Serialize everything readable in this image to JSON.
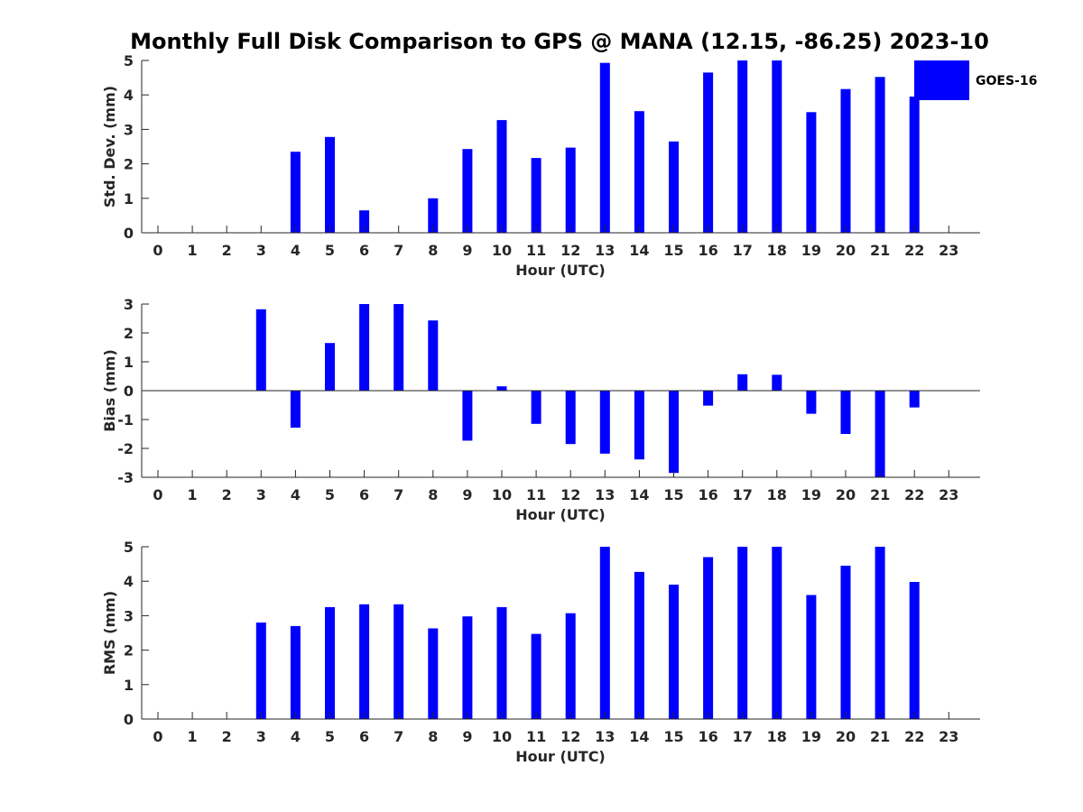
{
  "figure_title": "Monthly Full Disk Comparison to GPS @ MANA (12.15, -86.25) 2023-10",
  "legend": {
    "label": "GOES-16",
    "color": "#0000ff"
  },
  "chart_data": [
    {
      "type": "bar",
      "ylabel": "Std. Dev. (mm)",
      "xlabel": "Hour (UTC)",
      "ylim": [
        0,
        5
      ],
      "yticks": [
        0,
        1,
        2,
        3,
        4,
        5
      ],
      "x": [
        0,
        1,
        2,
        3,
        4,
        5,
        6,
        7,
        8,
        9,
        10,
        11,
        12,
        13,
        14,
        15,
        16,
        17,
        18,
        19,
        20,
        21,
        22,
        23
      ],
      "values": [
        null,
        null,
        null,
        null,
        2.35,
        2.78,
        0.65,
        null,
        1.0,
        2.43,
        3.27,
        2.17,
        2.47,
        4.93,
        3.53,
        2.65,
        4.65,
        5.0,
        5.0,
        3.5,
        4.17,
        4.52,
        3.95,
        null
      ],
      "color": "#0000ff",
      "baseline": false
    },
    {
      "type": "bar",
      "ylabel": "Bias (mm)",
      "xlabel": "Hour (UTC)",
      "ylim": [
        -3,
        3
      ],
      "yticks": [
        -3,
        -2,
        -1,
        0,
        1,
        2,
        3
      ],
      "x": [
        0,
        1,
        2,
        3,
        4,
        5,
        6,
        7,
        8,
        9,
        10,
        11,
        12,
        13,
        14,
        15,
        16,
        17,
        18,
        19,
        20,
        21,
        22,
        23
      ],
      "values": [
        null,
        null,
        null,
        2.82,
        -1.28,
        1.65,
        3.0,
        3.0,
        2.43,
        -1.73,
        0.15,
        -1.15,
        -1.85,
        -2.18,
        -2.38,
        -2.85,
        -0.52,
        0.57,
        0.55,
        -0.8,
        -1.5,
        -3.0,
        -0.58,
        null
      ],
      "color": "#0000ff",
      "baseline": true
    },
    {
      "type": "bar",
      "ylabel": "RMS (mm)",
      "xlabel": "Hour (UTC)",
      "ylim": [
        0,
        5
      ],
      "yticks": [
        0,
        1,
        2,
        3,
        4,
        5
      ],
      "x": [
        0,
        1,
        2,
        3,
        4,
        5,
        6,
        7,
        8,
        9,
        10,
        11,
        12,
        13,
        14,
        15,
        16,
        17,
        18,
        19,
        20,
        21,
        22,
        23
      ],
      "values": [
        null,
        null,
        null,
        2.8,
        2.7,
        3.25,
        3.33,
        3.33,
        2.63,
        2.98,
        3.25,
        2.47,
        3.07,
        5.0,
        4.27,
        3.9,
        4.7,
        5.0,
        5.0,
        3.6,
        4.45,
        5.0,
        3.98,
        null
      ],
      "color": "#0000ff",
      "baseline": false
    }
  ]
}
